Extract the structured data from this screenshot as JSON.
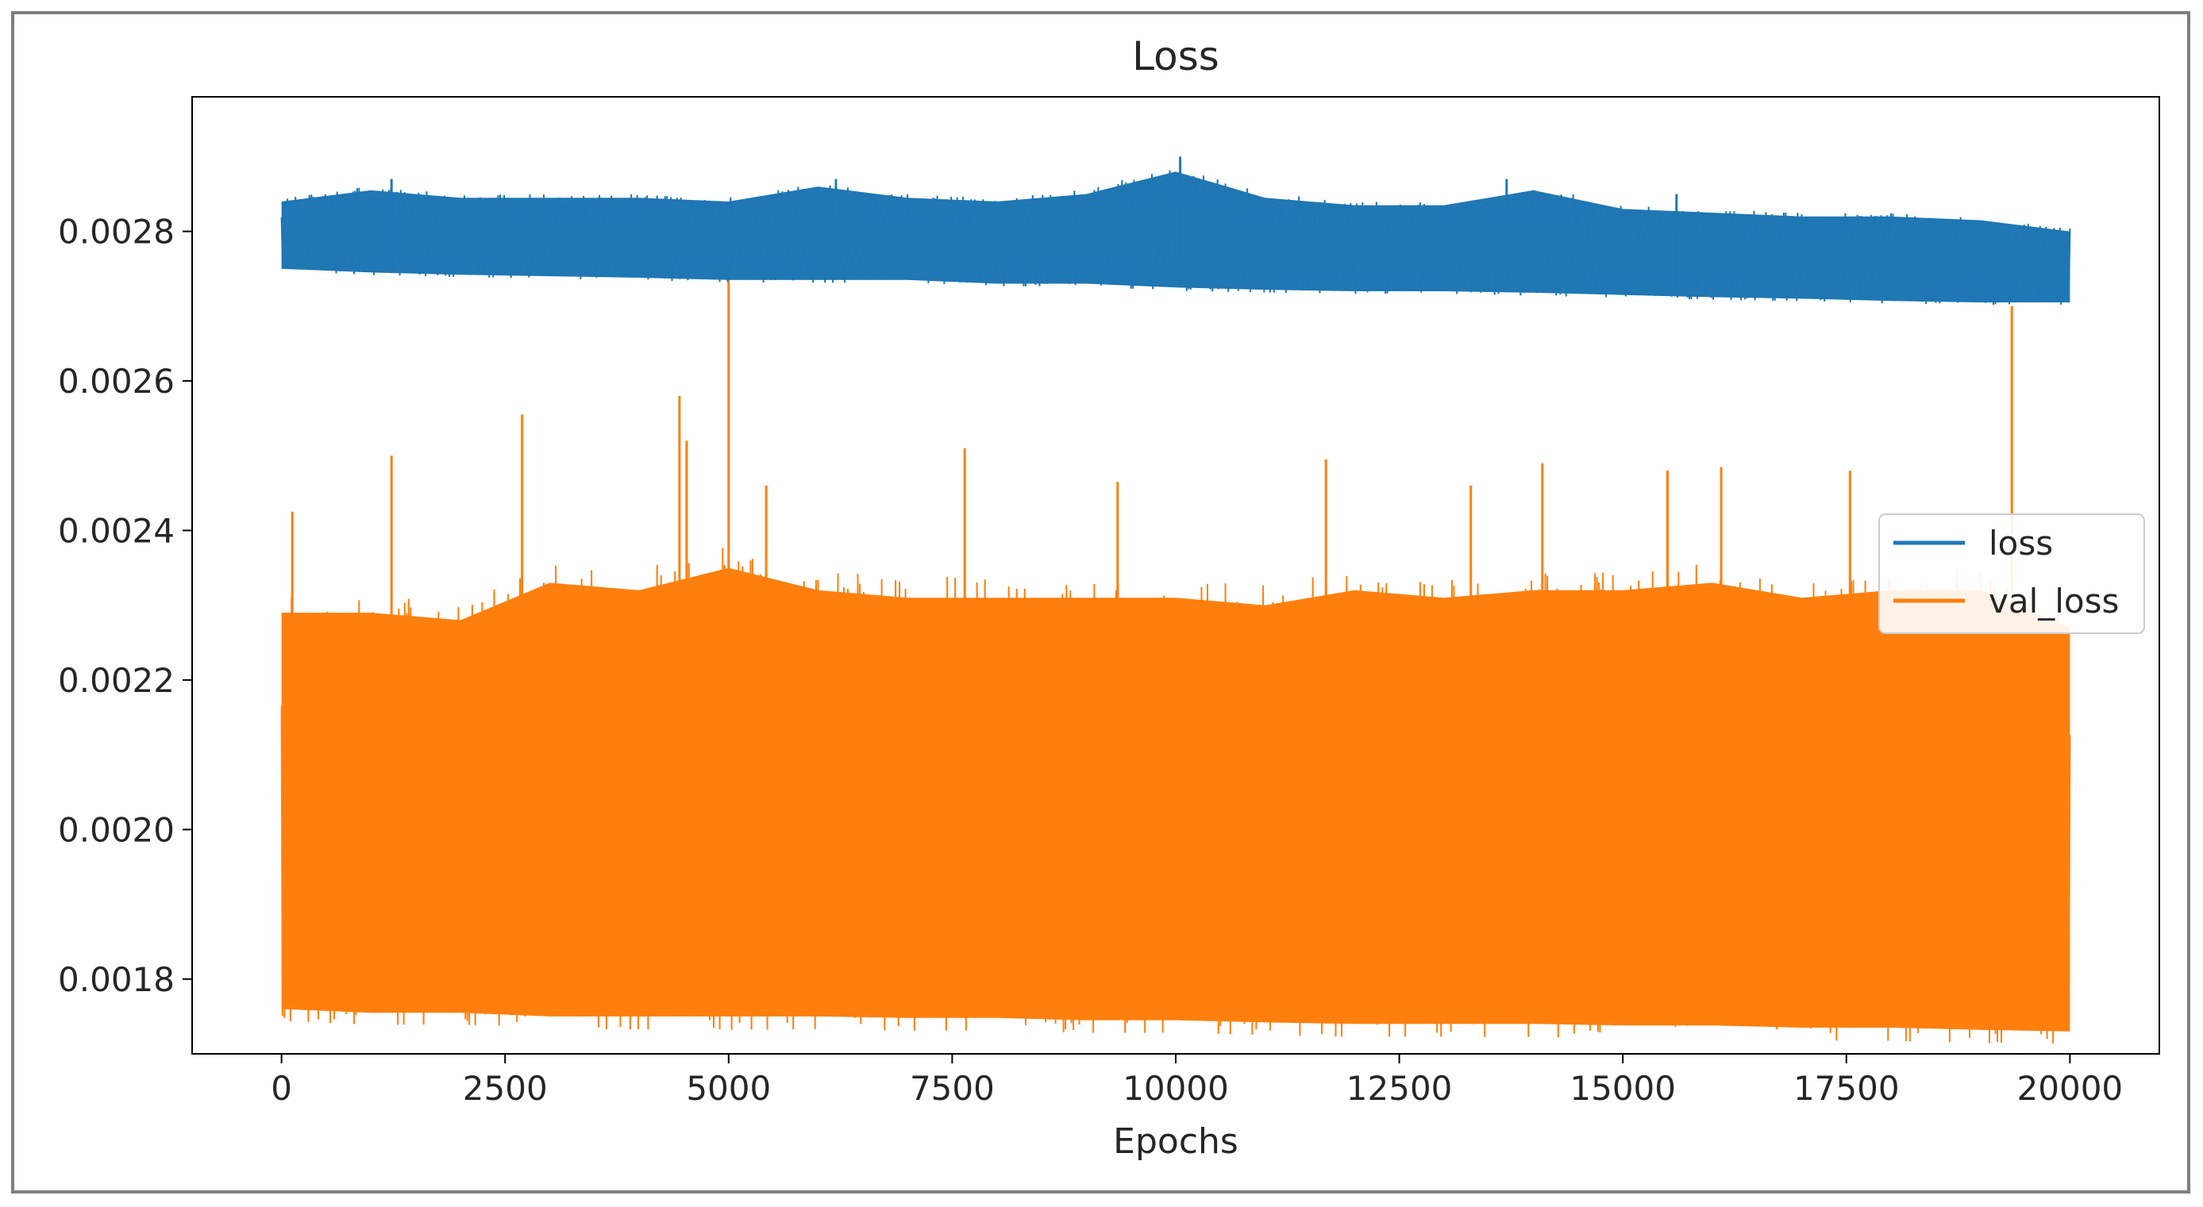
{
  "chart_data": {
    "type": "line",
    "title": "Loss",
    "xlabel": "Epochs",
    "ylabel": "",
    "xlim": [
      -1000,
      21000
    ],
    "ylim": [
      0.0017,
      0.00298
    ],
    "xticks": [
      0,
      2500,
      5000,
      7500,
      10000,
      12500,
      15000,
      17500,
      20000
    ],
    "xtick_labels": [
      "0",
      "2500",
      "5000",
      "7500",
      "10000",
      "12500",
      "15000",
      "17500",
      "20000"
    ],
    "yticks": [
      0.0018,
      0.002,
      0.0022,
      0.0024,
      0.0026,
      0.0028
    ],
    "ytick_labels": [
      "0.0018",
      "0.0020",
      "0.0022",
      "0.0024",
      "0.0026",
      "0.0028"
    ],
    "grid": false,
    "legend_position": "center-right",
    "series": [
      {
        "name": "loss",
        "color": "#1f77b4",
        "x": [
          0,
          1000,
          2000,
          3000,
          4000,
          5000,
          6000,
          7000,
          8000,
          9000,
          10000,
          11000,
          12000,
          13000,
          14000,
          15000,
          16000,
          17000,
          18000,
          19000,
          20000
        ],
        "y_min": [
          0.00275,
          0.002745,
          0.002742,
          0.00274,
          0.002738,
          0.002735,
          0.002735,
          0.002735,
          0.00273,
          0.00273,
          0.002725,
          0.002722,
          0.00272,
          0.00272,
          0.002718,
          0.002715,
          0.002712,
          0.00271,
          0.002707,
          0.002705,
          0.002705
        ],
        "y_max": [
          0.00284,
          0.002855,
          0.002845,
          0.002845,
          0.002845,
          0.00284,
          0.00286,
          0.002845,
          0.00284,
          0.00285,
          0.00288,
          0.002845,
          0.002835,
          0.002835,
          0.002855,
          0.00283,
          0.002825,
          0.00282,
          0.00282,
          0.002815,
          0.0028
        ],
        "peaks": [
          {
            "x": 1230,
            "y": 0.00287
          },
          {
            "x": 6200,
            "y": 0.00287
          },
          {
            "x": 10050,
            "y": 0.0029
          },
          {
            "x": 13700,
            "y": 0.00287
          },
          {
            "x": 15600,
            "y": 0.00285
          }
        ]
      },
      {
        "name": "val_loss",
        "color": "#ff7f0e",
        "x": [
          0,
          1000,
          2000,
          3000,
          4000,
          5000,
          6000,
          7000,
          8000,
          9000,
          10000,
          11000,
          12000,
          13000,
          14000,
          15000,
          16000,
          17000,
          18000,
          19000,
          20000
        ],
        "y_min": [
          0.00176,
          0.001755,
          0.001755,
          0.00175,
          0.00175,
          0.00175,
          0.00175,
          0.001748,
          0.001748,
          0.001745,
          0.001745,
          0.001742,
          0.00174,
          0.00174,
          0.00174,
          0.001738,
          0.001738,
          0.001735,
          0.001735,
          0.001732,
          0.00173
        ],
        "y_max": [
          0.00229,
          0.00229,
          0.00228,
          0.00233,
          0.00232,
          0.00235,
          0.00232,
          0.00231,
          0.00231,
          0.00231,
          0.00231,
          0.0023,
          0.00232,
          0.00231,
          0.00232,
          0.00232,
          0.00233,
          0.00231,
          0.00232,
          0.00232,
          0.00227
        ],
        "peaks": [
          {
            "x": 120,
            "y": 0.002425
          },
          {
            "x": 1230,
            "y": 0.0025
          },
          {
            "x": 2690,
            "y": 0.002555
          },
          {
            "x": 4450,
            "y": 0.00258
          },
          {
            "x": 4530,
            "y": 0.00252
          },
          {
            "x": 5000,
            "y": 0.00279
          },
          {
            "x": 5420,
            "y": 0.00246
          },
          {
            "x": 7640,
            "y": 0.00251
          },
          {
            "x": 9350,
            "y": 0.002465
          },
          {
            "x": 11680,
            "y": 0.002495
          },
          {
            "x": 13300,
            "y": 0.00246
          },
          {
            "x": 14100,
            "y": 0.00249
          },
          {
            "x": 15500,
            "y": 0.00248
          },
          {
            "x": 16100,
            "y": 0.002485
          },
          {
            "x": 17540,
            "y": 0.00248
          },
          {
            "x": 19350,
            "y": 0.0027
          }
        ]
      }
    ]
  }
}
